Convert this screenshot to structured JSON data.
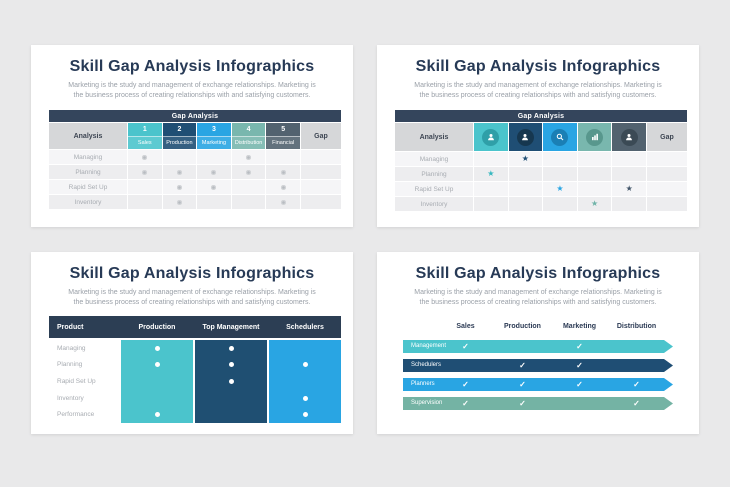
{
  "shared": {
    "title": "Skill Gap Analysis Infographics",
    "subtitle": "Marketing is the study and management of exchange relationships. Marketing is the business process of creating relationships with and satisfying customers."
  },
  "colors": {
    "background": "#e9e9ea",
    "card": "#ffffff",
    "navy_bar": "#34455c",
    "title_text": "#273a56",
    "subtitle_text": "#9aa0a8",
    "teal": "#4bc4cc",
    "dark_blue": "#1f4e74",
    "bright_blue": "#29a5e3",
    "sage_green": "#79b7ae",
    "slate": "#52626f",
    "gray_cell": "#d6d7d9"
  },
  "slide1": {
    "table_title": "Gap Analysis",
    "analysis_label": "Analysis",
    "gap_label": "Gap",
    "columns": [
      {
        "num": "1",
        "label": "Sales",
        "color": "#4bc4cc"
      },
      {
        "num": "2",
        "label": "Production",
        "color": "#1f4e74"
      },
      {
        "num": "3",
        "label": "Marketing",
        "color": "#29a5e3"
      },
      {
        "num": "4",
        "label": "Distribution",
        "color": "#79b7ae"
      },
      {
        "num": "5",
        "label": "Financial",
        "color": "#52626f"
      }
    ],
    "rows": [
      {
        "label": "Managing",
        "dots": [
          1,
          0,
          0,
          1,
          0
        ]
      },
      {
        "label": "Planning",
        "dots": [
          1,
          1,
          1,
          1,
          1
        ]
      },
      {
        "label": "Rapid Set Up",
        "dots": [
          0,
          1,
          1,
          0,
          1
        ]
      },
      {
        "label": "Inventory",
        "dots": [
          0,
          1,
          0,
          0,
          1
        ]
      }
    ]
  },
  "slide2": {
    "table_title": "Gap Analysis",
    "analysis_label": "Analysis",
    "gap_label": "Gap",
    "star_glyph": "★",
    "columns": [
      {
        "color": "#4bc4cc",
        "circle": "#2f9fa8",
        "icon": "user"
      },
      {
        "color": "#1f4e74",
        "circle": "#16374f",
        "icon": "user"
      },
      {
        "color": "#29a5e3",
        "circle": "#1a7fb5",
        "icon": "search"
      },
      {
        "color": "#79b7ae",
        "circle": "#58978d",
        "icon": "chart"
      },
      {
        "color": "#52626f",
        "circle": "#3b4a55",
        "icon": "user"
      }
    ],
    "star_colors": [
      "#35b7bf",
      "#1f4e74",
      "#29a5e3",
      "#6fb3a8",
      "#42566a"
    ],
    "rows": [
      {
        "label": "Managing",
        "stars": [
          0,
          1,
          0,
          0,
          0
        ]
      },
      {
        "label": "Planning",
        "stars": [
          1,
          0,
          0,
          0,
          0
        ]
      },
      {
        "label": "Rapid Set Up",
        "stars": [
          0,
          0,
          1,
          0,
          1
        ]
      },
      {
        "label": "Inventory",
        "stars": [
          0,
          0,
          0,
          1,
          0
        ]
      }
    ]
  },
  "slide3": {
    "header": [
      "Product",
      "Production",
      "Top Management",
      "Schedulers"
    ],
    "column_colors": [
      "#4bc4cc",
      "#1f4f72",
      "#29a5e3"
    ],
    "rows": [
      {
        "label": "Managing",
        "dots": [
          1,
          1,
          0
        ]
      },
      {
        "label": "Planning",
        "dots": [
          1,
          1,
          1
        ]
      },
      {
        "label": "Rapid Set Up",
        "dots": [
          0,
          1,
          0
        ]
      },
      {
        "label": "Inventory",
        "dots": [
          0,
          0,
          1
        ]
      },
      {
        "label": "Performance",
        "dots": [
          1,
          0,
          1
        ]
      }
    ]
  },
  "slide4": {
    "header": [
      "Sales",
      "Production",
      "Marketing",
      "Distribution"
    ],
    "check_glyph": "✓",
    "rows": [
      {
        "label": "Management",
        "color": "#4bc4cc",
        "checks": [
          1,
          0,
          1,
          0
        ]
      },
      {
        "label": "Schedulers",
        "color": "#1f4e74",
        "checks": [
          0,
          1,
          1,
          0
        ]
      },
      {
        "label": "Planners",
        "color": "#29a5e3",
        "checks": [
          1,
          1,
          1,
          1
        ]
      },
      {
        "label": "Supervision",
        "color": "#74b3a4",
        "checks": [
          1,
          1,
          0,
          1
        ]
      }
    ]
  }
}
